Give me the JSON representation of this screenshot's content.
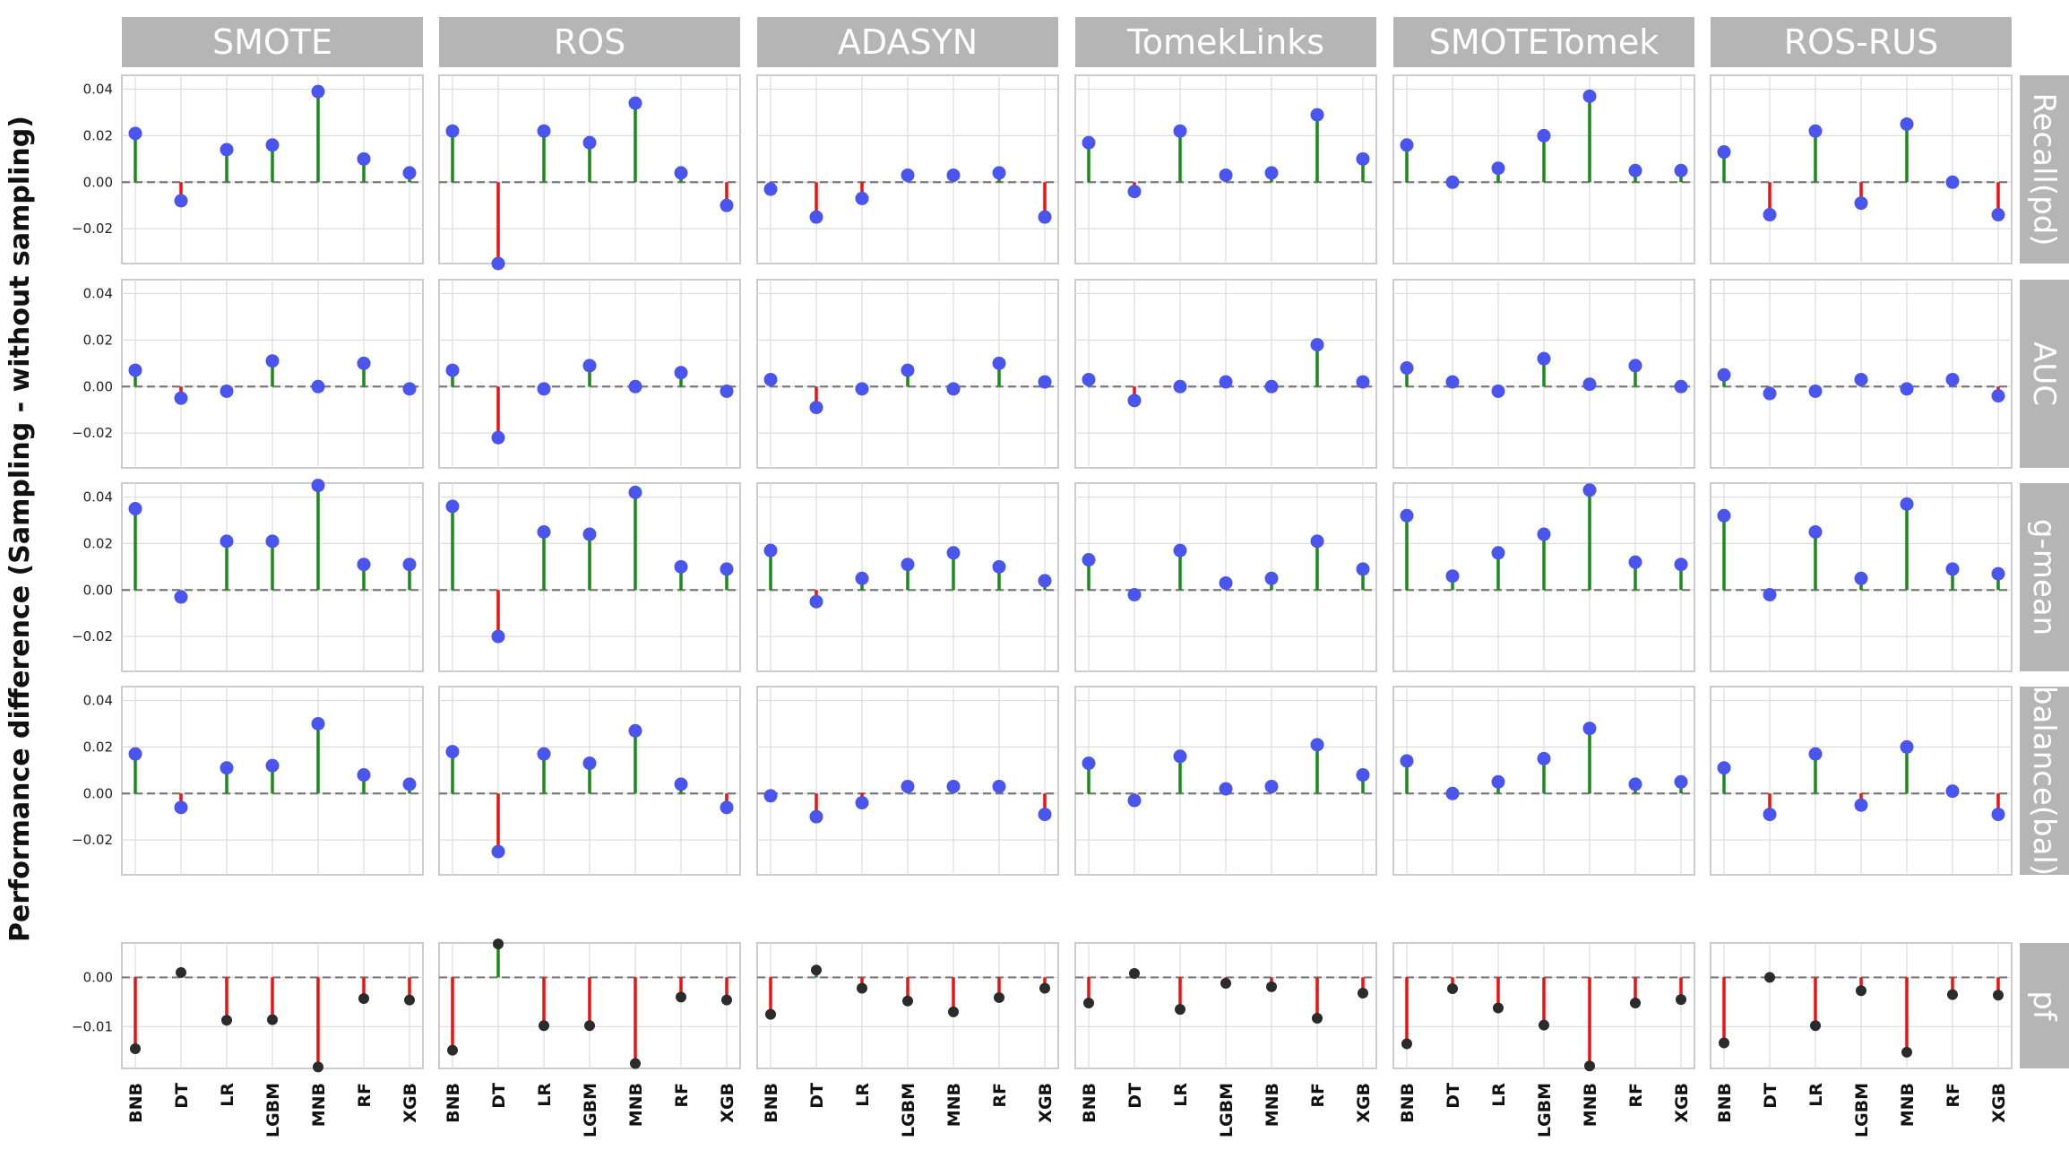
{
  "y_axis_label": "Performance difference (Sampling - without sampling)",
  "colors": {
    "positive_stem": "#1a8a1a",
    "negative_stem": "#ee1111",
    "marker": "#4a55ee",
    "pf_marker": "#2b2b2b",
    "header_bg": "#b5b5b5",
    "zero_line": "#7a7a7a",
    "grid": "#dddddd"
  },
  "chart_data": {
    "type": "lollipop",
    "columns": [
      "SMOTE",
      "ROS",
      "ADASYN",
      "TomekLinks",
      "SMOTETomek",
      "ROS-RUS"
    ],
    "categories": [
      "BNB",
      "DT",
      "LR",
      "LGBM",
      "MNB",
      "RF",
      "XGB"
    ],
    "grid": true,
    "rows": [
      {
        "name": "Recall(pd)",
        "ylim": [
          -0.035,
          0.046
        ],
        "yticks": [
          "0.04",
          "0.02",
          "0.00",
          "−0.02"
        ],
        "values": [
          [
            0.021,
            -0.008,
            0.014,
            0.016,
            0.039,
            0.01,
            0.004
          ],
          [
            0.022,
            -0.035,
            0.022,
            0.017,
            0.034,
            0.004,
            -0.01
          ],
          [
            -0.003,
            -0.015,
            -0.007,
            0.003,
            0.003,
            0.004,
            -0.015
          ],
          [
            0.017,
            -0.004,
            0.022,
            0.003,
            0.004,
            0.029,
            0.01
          ],
          [
            0.016,
            0.0,
            0.006,
            0.02,
            0.037,
            0.005,
            0.005
          ],
          [
            0.013,
            -0.014,
            0.022,
            -0.009,
            0.025,
            0.0,
            -0.014
          ]
        ]
      },
      {
        "name": "AUC",
        "ylim": [
          -0.035,
          0.046
        ],
        "yticks": [
          "0.04",
          "0.02",
          "0.00",
          "−0.02"
        ],
        "values": [
          [
            0.007,
            -0.005,
            -0.002,
            0.011,
            0.0,
            0.01,
            -0.001
          ],
          [
            0.007,
            -0.022,
            -0.001,
            0.009,
            0.0,
            0.006,
            -0.002
          ],
          [
            0.003,
            -0.009,
            -0.001,
            0.007,
            -0.001,
            0.01,
            0.002
          ],
          [
            0.003,
            -0.006,
            0.0,
            0.002,
            0.0,
            0.018,
            0.002
          ],
          [
            0.008,
            0.002,
            -0.002,
            0.012,
            0.001,
            0.009,
            0.0
          ],
          [
            0.005,
            -0.003,
            -0.002,
            0.003,
            -0.001,
            0.003,
            -0.004
          ]
        ]
      },
      {
        "name": "g-mean",
        "ylim": [
          -0.035,
          0.046
        ],
        "yticks": [
          "0.04",
          "0.02",
          "0.00",
          "−0.02"
        ],
        "values": [
          [
            0.035,
            -0.003,
            0.021,
            0.021,
            0.045,
            0.011,
            0.011
          ],
          [
            0.036,
            -0.02,
            0.025,
            0.024,
            0.042,
            0.01,
            0.009
          ],
          [
            0.017,
            -0.005,
            0.005,
            0.011,
            0.016,
            0.01,
            0.004
          ],
          [
            0.013,
            -0.002,
            0.017,
            0.003,
            0.005,
            0.021,
            0.009
          ],
          [
            0.032,
            0.006,
            0.016,
            0.024,
            0.043,
            0.012,
            0.011
          ],
          [
            0.032,
            -0.002,
            0.025,
            0.005,
            0.037,
            0.009,
            0.007
          ]
        ]
      },
      {
        "name": "balance(bal)",
        "ylim": [
          -0.035,
          0.046
        ],
        "yticks": [
          "0.04",
          "0.02",
          "0.00",
          "−0.02"
        ],
        "values": [
          [
            0.017,
            -0.006,
            0.011,
            0.012,
            0.03,
            0.008,
            0.004
          ],
          [
            0.018,
            -0.025,
            0.017,
            0.013,
            0.027,
            0.004,
            -0.006
          ],
          [
            -0.001,
            -0.01,
            -0.004,
            0.003,
            0.003,
            0.003,
            -0.009
          ],
          [
            0.013,
            -0.003,
            0.016,
            0.002,
            0.003,
            0.021,
            0.008
          ],
          [
            0.014,
            0.0,
            0.005,
            0.015,
            0.028,
            0.004,
            0.005
          ],
          [
            0.011,
            -0.009,
            0.017,
            -0.005,
            0.02,
            0.001,
            -0.009
          ]
        ]
      },
      {
        "name": "pf",
        "ylim": [
          -0.0185,
          0.007
        ],
        "yticks": [
          "0.00",
          "−0.01"
        ],
        "dark_markers": true,
        "values": [
          [
            -0.0145,
            0.001,
            -0.0087,
            -0.0086,
            -0.0182,
            -0.0043,
            -0.0046
          ],
          [
            -0.0148,
            0.0068,
            -0.0098,
            -0.0098,
            -0.0175,
            -0.004,
            -0.0046
          ],
          [
            -0.0075,
            0.0015,
            -0.0022,
            -0.0048,
            -0.007,
            -0.0041,
            -0.0022
          ],
          [
            -0.0052,
            0.0008,
            -0.0065,
            -0.0012,
            -0.0019,
            -0.0083,
            -0.0032
          ],
          [
            -0.0135,
            -0.0023,
            -0.0062,
            -0.0097,
            -0.018,
            -0.0052,
            -0.0045
          ],
          [
            -0.0133,
            0.0,
            -0.0098,
            -0.0027,
            -0.0152,
            -0.0035,
            -0.0036
          ]
        ]
      }
    ]
  }
}
